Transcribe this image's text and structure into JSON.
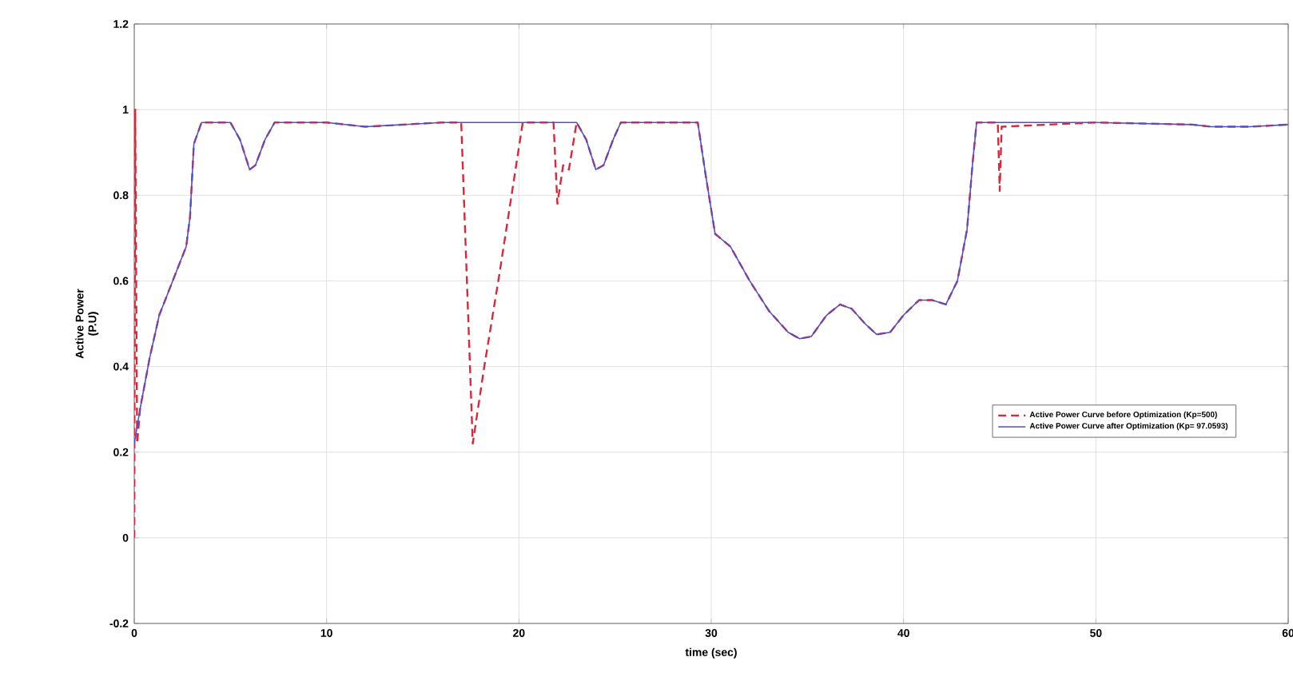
{
  "chart_data": {
    "type": "line",
    "xlabel": "time (sec)",
    "ylabel": "Active Power\n(P.U)",
    "xlim": [
      0,
      60
    ],
    "xticks": [
      0,
      10,
      20,
      30,
      40,
      50,
      60
    ],
    "ylim": [
      -0.2,
      1.2
    ],
    "yticks": [
      -0.2,
      0,
      0.2,
      0.4,
      0.6,
      0.8,
      1,
      1.2
    ],
    "grid": true,
    "legend": "right",
    "series": [
      {
        "name": "Active Power Curve before Optimization (Kp=500)",
        "color": "#d8283a",
        "line_style": "dashed",
        "x": [
          0,
          0.05,
          0.15,
          0.3,
          0.8,
          1.3,
          2,
          2.7,
          2.9,
          3.1,
          3.5,
          5,
          5.5,
          6,
          6.3,
          6.8,
          7.3,
          10,
          12,
          14,
          16,
          17,
          17.6,
          18.2,
          19,
          20.2,
          21.8,
          22,
          22.3,
          22.6,
          23,
          23.5,
          24,
          24.4,
          24.9,
          25.3,
          29.3,
          29.7,
          30.2,
          31,
          32,
          33,
          34,
          34.6,
          35.2,
          36,
          36.7,
          37.3,
          38,
          38.6,
          39.3,
          40,
          40.8,
          41.5,
          42.2,
          42.8,
          43.3,
          43.6,
          43.8,
          44.9,
          45,
          45.1,
          50,
          55,
          56,
          58,
          60
        ],
        "values": [
          0,
          1.0,
          0.22,
          0.3,
          0.42,
          0.52,
          0.6,
          0.68,
          0.75,
          0.92,
          0.97,
          0.97,
          0.93,
          0.86,
          0.87,
          0.93,
          0.97,
          0.97,
          0.96,
          0.965,
          0.97,
          0.97,
          0.22,
          0.4,
          0.62,
          0.97,
          0.97,
          0.78,
          0.87,
          0.86,
          0.97,
          0.93,
          0.86,
          0.87,
          0.93,
          0.97,
          0.97,
          0.85,
          0.71,
          0.68,
          0.6,
          0.53,
          0.48,
          0.465,
          0.47,
          0.52,
          0.545,
          0.535,
          0.5,
          0.475,
          0.48,
          0.52,
          0.555,
          0.555,
          0.545,
          0.6,
          0.72,
          0.88,
          0.97,
          0.97,
          0.81,
          0.96,
          0.97,
          0.965,
          0.96,
          0.96,
          0.965
        ]
      },
      {
        "name": "Active Power Curve after Optimization (Kp= 97.0593)",
        "color": "#5050c8",
        "line_style": "solid",
        "x": [
          0,
          0.3,
          0.8,
          1.3,
          2,
          2.7,
          2.9,
          3.1,
          3.5,
          5,
          5.5,
          6,
          6.3,
          6.8,
          7.3,
          10,
          12,
          14,
          16,
          17,
          20,
          23,
          23.5,
          24,
          24.4,
          24.9,
          25.3,
          29.3,
          29.7,
          30.2,
          31,
          32,
          33,
          34,
          34.6,
          35.2,
          36,
          36.7,
          37.3,
          38,
          38.6,
          39.3,
          40,
          40.8,
          41.5,
          42.2,
          42.8,
          43.3,
          43.6,
          43.8,
          45,
          50,
          55,
          56,
          58,
          60
        ],
        "values": [
          0.22,
          0.3,
          0.42,
          0.52,
          0.6,
          0.68,
          0.75,
          0.92,
          0.97,
          0.97,
          0.93,
          0.86,
          0.87,
          0.93,
          0.97,
          0.97,
          0.96,
          0.965,
          0.97,
          0.97,
          0.97,
          0.97,
          0.93,
          0.86,
          0.87,
          0.93,
          0.97,
          0.97,
          0.85,
          0.71,
          0.68,
          0.6,
          0.53,
          0.48,
          0.465,
          0.47,
          0.52,
          0.545,
          0.535,
          0.5,
          0.475,
          0.48,
          0.52,
          0.555,
          0.555,
          0.545,
          0.6,
          0.72,
          0.88,
          0.97,
          0.97,
          0.97,
          0.965,
          0.96,
          0.96,
          0.965
        ]
      }
    ]
  }
}
